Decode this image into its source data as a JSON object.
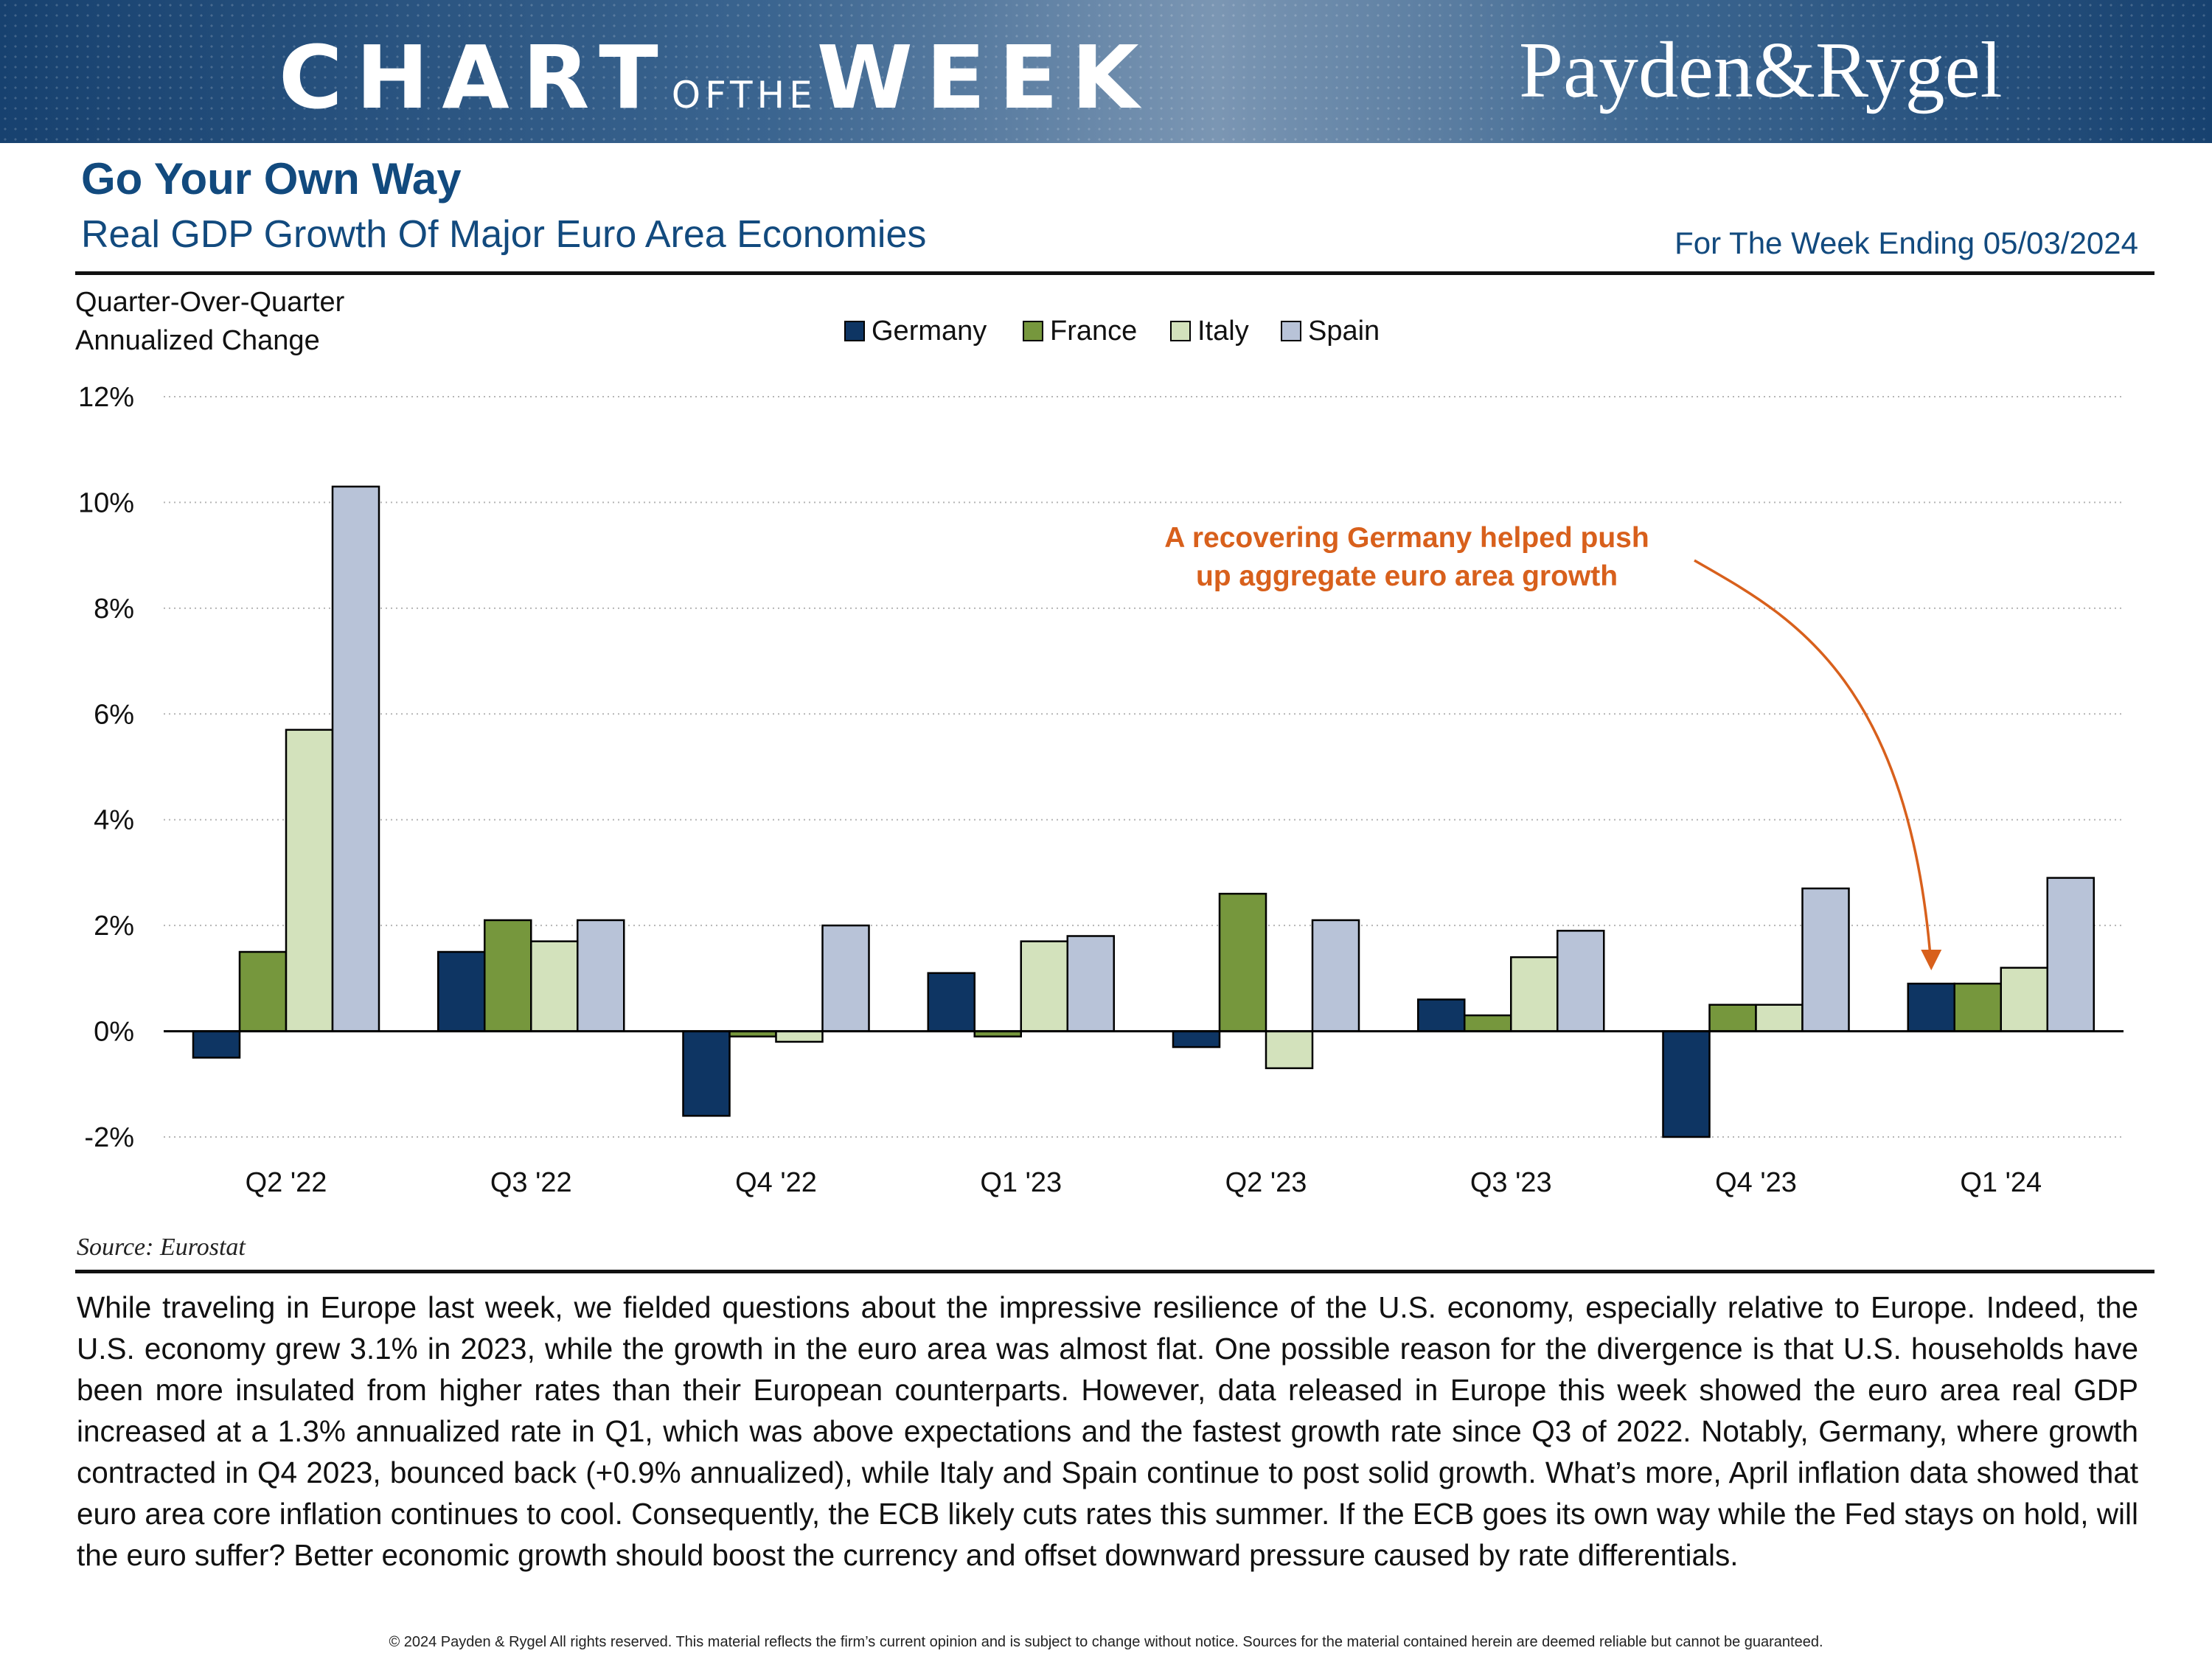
{
  "header": {
    "chart_word": "CHART",
    "of_the_word": "OFTHE",
    "week_word": "WEEK",
    "brand": "Payden&Rygel"
  },
  "title": "Go Your Own Way",
  "subtitle": "Real GDP Growth Of Major Euro Area Economies",
  "week_ending": "For The Week Ending 05/03/2024",
  "source": "Source: Eurostat",
  "body_text": "While traveling in Europe last week, we fielded questions about the impressive resilience of the U.S. economy, especially relative to Europe. Indeed, the U.S. economy grew 3.1% in 2023, while the growth in the euro area was almost flat. One possible reason for the divergence is that U.S. households have been more insulated from higher rates than their European counterparts. However, data released in Europe this week showed the euro area real GDP increased at a 1.3% annualized rate in Q1, which was above expectations and the fastest growth rate since Q3 of 2022. Notably, Germany, where growth contracted in Q4 2023, bounced back (+0.9% annualized), while Italy and Spain continue to post solid growth. What’s more, April inflation data showed that euro area core inflation continues to cool. Consequently, the ECB likely cuts rates this summer. If the ECB goes its own way while the Fed stays on hold, will the euro suffer? Better economic growth should boost the currency and offset downward pressure caused by rate differentials.",
  "footer": "© 2024 Payden & Rygel All rights reserved. This material reflects the firm’s current opinion and is subject to change without notice. Sources for the material contained herein are deemed reliable but cannot be guaranteed.",
  "colors": {
    "navy": "#0e3563",
    "green": "#76973d",
    "light_green": "#d3e2bc",
    "light_blue": "#b8c3d8",
    "annotation": "#d8601c",
    "title_blue": "#124a7e"
  },
  "chart_data": {
    "type": "bar",
    "ylabel_lines": [
      "Quarter-Over-Quarter",
      "Annualized Change"
    ],
    "categories": [
      "Q2 '22",
      "Q3 '22",
      "Q4 '22",
      "Q1 '23",
      "Q2 '23",
      "Q3 '23",
      "Q4 '23",
      "Q1 '24"
    ],
    "series": [
      {
        "name": "Germany",
        "color": "#0e3563",
        "values": [
          -0.5,
          1.5,
          -1.6,
          1.1,
          -0.3,
          0.6,
          -2.0,
          0.9
        ]
      },
      {
        "name": "France",
        "color": "#76973d",
        "values": [
          1.5,
          2.1,
          -0.1,
          -0.1,
          2.6,
          0.3,
          0.5,
          0.9
        ]
      },
      {
        "name": "Italy",
        "color": "#d3e2bc",
        "values": [
          5.7,
          1.7,
          -0.2,
          1.7,
          -0.7,
          1.4,
          0.5,
          1.2
        ]
      },
      {
        "name": "Spain",
        "color": "#b8c3d8",
        "values": [
          10.3,
          2.1,
          2.0,
          1.8,
          2.1,
          1.9,
          2.7,
          2.9
        ]
      }
    ],
    "ylim": [
      -2,
      12
    ],
    "yticks": [
      -2,
      0,
      2,
      4,
      6,
      8,
      10,
      12
    ],
    "ytick_labels": [
      "-2%",
      "0%",
      "2%",
      "4%",
      "6%",
      "8%",
      "10%",
      "12%"
    ],
    "grid": "horizontal dotted",
    "legend_position": "top-center",
    "annotation": {
      "lines": [
        "A recovering Germany helped push",
        "up aggregate euro area growth"
      ],
      "points_to": {
        "category": "Q1 '24",
        "series": "Germany"
      }
    }
  }
}
